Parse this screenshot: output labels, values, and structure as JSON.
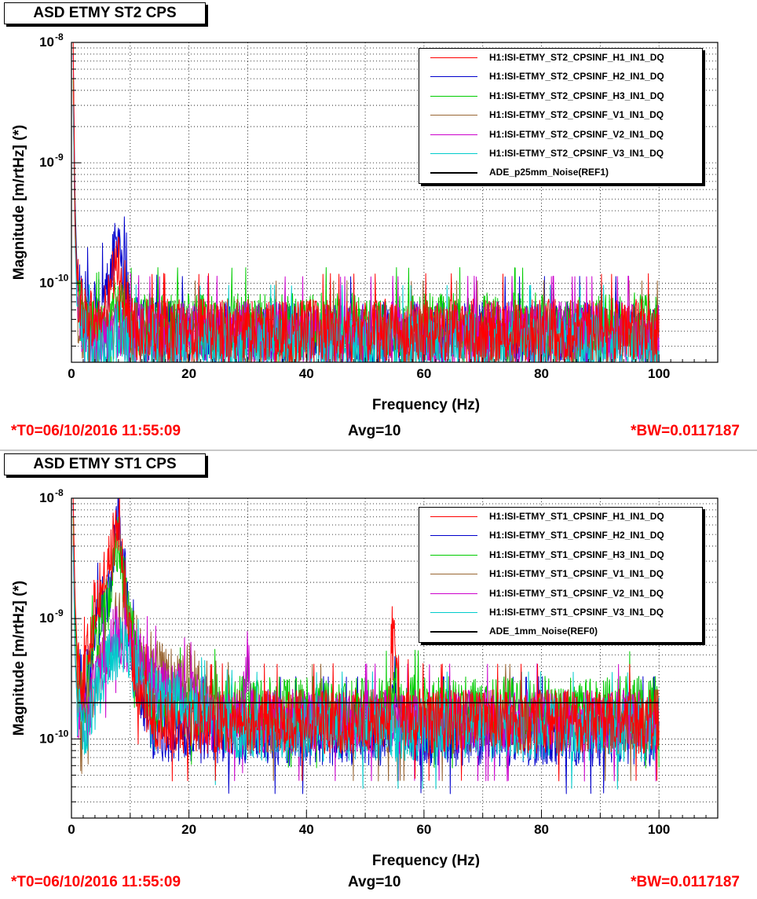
{
  "chart_data": [
    {
      "type": "line",
      "title": "ASD ETMY ST2 CPS",
      "xlabel": "Frequency (Hz)",
      "ylabel": "Magnitude [m/rtHz] (*)",
      "xlim": [
        0,
        110
      ],
      "ylim": [
        2.2e-11,
        1e-08
      ],
      "y_scale": "log",
      "grid": true,
      "legend_position": "top-right",
      "x_ticks": [
        "0",
        "20",
        "40",
        "60",
        "80",
        "100"
      ],
      "y_ticks": [
        {
          "base": "10",
          "exp": "-8"
        },
        {
          "base": "10",
          "exp": "-9"
        },
        {
          "base": "10",
          "exp": "-10"
        }
      ],
      "series": [
        {
          "name": "H1:ISI-ETMY_ST2_CPSINF_H1_IN1_DQ",
          "color": "#ff0000",
          "x": [
            0.3,
            0.6,
            1,
            2,
            4,
            6,
            7,
            8,
            9,
            10,
            12,
            20,
            40,
            60,
            80,
            100
          ],
          "y": [
            1e-08,
            3e-10,
            9e-11,
            6e-11,
            4.5e-11,
            6e-11,
            1e-10,
            1.45e-10,
            9e-11,
            4.5e-11,
            4e-11,
            4e-11,
            4e-11,
            4e-11,
            4e-11,
            4e-11
          ]
        },
        {
          "name": "H1:ISI-ETMY_ST2_CPSINF_H2_IN1_DQ",
          "color": "#0000cc",
          "x": [
            0.3,
            0.6,
            1,
            2,
            4,
            6,
            7,
            8,
            9,
            10,
            12,
            20,
            40,
            60,
            80,
            100
          ],
          "y": [
            8e-09,
            5e-10,
            1.1e-10,
            7e-11,
            6e-11,
            8e-11,
            1.6e-10,
            2.7e-10,
            1.2e-10,
            5e-11,
            4e-11,
            3.8e-11,
            3.8e-11,
            3.8e-11,
            3.8e-11,
            3.8e-11
          ]
        },
        {
          "name": "H1:ISI-ETMY_ST2_CPSINF_H3_IN1_DQ",
          "color": "#00cc00",
          "x": [
            0.3,
            0.6,
            1,
            2,
            4,
            6,
            7,
            8,
            9,
            10,
            12,
            20,
            40,
            60,
            80,
            100
          ],
          "y": [
            5e-09,
            4e-10,
            8e-11,
            5e-11,
            4e-11,
            4.5e-11,
            6e-11,
            7e-11,
            5e-11,
            4.5e-11,
            4.5e-11,
            4.5e-11,
            4.5e-11,
            4.5e-11,
            4.5e-11,
            4.5e-11
          ]
        },
        {
          "name": "H1:ISI-ETMY_ST2_CPSINF_V1_IN1_DQ",
          "color": "#996633",
          "x": [
            0.3,
            0.6,
            1,
            2,
            4,
            6,
            7,
            8,
            9,
            10,
            12,
            20,
            40,
            60,
            80,
            100
          ],
          "y": [
            4e-09,
            3e-10,
            6e-11,
            4e-11,
            3.5e-11,
            3.5e-11,
            4e-11,
            4.5e-11,
            4e-11,
            3.8e-11,
            3.5e-11,
            3.5e-11,
            3.5e-11,
            3.5e-11,
            3.5e-11,
            3.5e-11
          ]
        },
        {
          "name": "H1:ISI-ETMY_ST2_CPSINF_V2_IN1_DQ",
          "color": "#cc00cc",
          "x": [
            0.3,
            0.6,
            1,
            2,
            4,
            6,
            7,
            8,
            9,
            10,
            12,
            20,
            40,
            60,
            80,
            100
          ],
          "y": [
            3e-09,
            3e-10,
            6e-11,
            4e-11,
            3.5e-11,
            3.8e-11,
            4.2e-11,
            4.5e-11,
            4.2e-11,
            4e-11,
            3.8e-11,
            3.8e-11,
            3.8e-11,
            3.8e-11,
            3.8e-11,
            3.8e-11
          ]
        },
        {
          "name": "H1:ISI-ETMY_ST2_CPSINF_V3_IN1_DQ",
          "color": "#00cccc",
          "x": [
            0.3,
            0.6,
            1,
            2,
            4,
            6,
            7,
            8,
            9,
            10,
            12,
            20,
            40,
            60,
            80,
            100
          ],
          "y": [
            3e-09,
            2.5e-10,
            5e-11,
            3.5e-11,
            3e-11,
            3.2e-11,
            3.5e-11,
            4e-11,
            3.5e-11,
            3.3e-11,
            3.2e-11,
            3.2e-11,
            3.2e-11,
            3.2e-11,
            3.2e-11,
            3.2e-11
          ]
        },
        {
          "name": "ADE_p25mm_Noise(REF1)",
          "color": "#000000",
          "x": [],
          "y": []
        }
      ]
    },
    {
      "type": "line",
      "title": "ASD ETMY ST1 CPS",
      "xlabel": "Frequency (Hz)",
      "ylabel": "Magnitude [m/rtHz] (*)",
      "xlim": [
        0,
        110
      ],
      "ylim": [
        2.2e-11,
        1e-08
      ],
      "y_scale": "log",
      "grid": true,
      "legend_position": "top-right",
      "x_ticks": [
        "0",
        "20",
        "40",
        "60",
        "80",
        "100"
      ],
      "y_ticks": [
        {
          "base": "10",
          "exp": "-8"
        },
        {
          "base": "10",
          "exp": "-9"
        },
        {
          "base": "10",
          "exp": "-10"
        }
      ],
      "series": [
        {
          "name": "H1:ISI-ETMY_ST1_CPSINF_H1_IN1_DQ",
          "color": "#ff0000",
          "x": [
            0.3,
            0.6,
            1,
            2,
            3,
            4,
            5,
            6,
            7,
            8,
            9,
            10,
            11,
            12,
            14,
            20,
            40,
            54,
            55,
            56,
            60,
            80,
            100
          ],
          "y": [
            1e-08,
            1.5e-09,
            5e-10,
            3e-10,
            6e-10,
            1.3e-09,
            1.8e-09,
            2.5e-09,
            4e-09,
            6e-09,
            2e-09,
            6e-10,
            3e-10,
            2.5e-10,
            1.4e-10,
            1.4e-10,
            1.4e-10,
            1.4e-10,
            9e-10,
            1.6e-10,
            1.4e-10,
            1.4e-10,
            1.4e-10
          ]
        },
        {
          "name": "H1:ISI-ETMY_ST1_CPSINF_H2_IN1_DQ",
          "color": "#0000cc",
          "x": [
            0.3,
            0.6,
            1,
            2,
            3,
            4,
            5,
            6,
            7,
            8,
            9,
            10,
            11,
            12,
            14,
            20,
            40,
            54,
            55,
            56,
            60,
            80,
            100
          ],
          "y": [
            9e-09,
            1.2e-09,
            4e-10,
            2.5e-10,
            4e-10,
            8e-10,
            1.2e-09,
            1.5e-09,
            2.5e-09,
            8e-09,
            2.5e-09,
            7e-10,
            3.5e-10,
            2.5e-10,
            1.2e-10,
            1.1e-10,
            1.1e-10,
            1.1e-10,
            3e-10,
            1.2e-10,
            1.1e-10,
            1.1e-10,
            1.1e-10
          ]
        },
        {
          "name": "H1:ISI-ETMY_ST1_CPSINF_H3_IN1_DQ",
          "color": "#00cc00",
          "x": [
            0.3,
            0.6,
            1,
            2,
            3,
            4,
            5,
            6,
            7,
            8,
            9,
            10,
            11,
            12,
            14,
            20,
            40,
            54,
            55,
            56,
            60,
            80,
            100
          ],
          "y": [
            7e-09,
            1e-09,
            3.5e-10,
            2e-10,
            3.5e-10,
            7e-10,
            1e-09,
            1.3e-09,
            2e-09,
            4e-09,
            2e-09,
            8e-10,
            5e-10,
            4e-10,
            2e-10,
            1.9e-10,
            1.8e-10,
            1.8e-10,
            3e-10,
            1.9e-10,
            1.8e-10,
            1.8e-10,
            1.8e-10
          ]
        },
        {
          "name": "H1:ISI-ETMY_ST1_CPSINF_V1_IN1_DQ",
          "color": "#996633",
          "x": [
            0.3,
            0.6,
            1,
            2,
            3,
            4,
            5,
            6,
            7,
            8,
            9,
            10,
            12,
            14,
            16,
            18,
            20,
            22,
            23,
            24,
            30,
            40,
            60,
            80,
            100
          ],
          "y": [
            5e-09,
            6e-10,
            2e-10,
            1.5e-10,
            2e-10,
            3e-10,
            4e-10,
            6e-10,
            8e-10,
            1e-09,
            9e-10,
            7e-10,
            5e-10,
            4e-10,
            3.5e-10,
            3e-10,
            3.5e-10,
            2.5e-10,
            2.5e-10,
            1.5e-10,
            1.4e-10,
            1.4e-10,
            1.4e-10,
            1.4e-10,
            1.4e-10
          ]
        },
        {
          "name": "H1:ISI-ETMY_ST1_CPSINF_V2_IN1_DQ",
          "color": "#cc00cc",
          "x": [
            0.3,
            0.6,
            1,
            2,
            3,
            4,
            5,
            6,
            7,
            8,
            9,
            10,
            12,
            14,
            16,
            18,
            20,
            22,
            24,
            29,
            30,
            31,
            40,
            60,
            80,
            100
          ],
          "y": [
            4e-09,
            5e-10,
            1.8e-10,
            1.3e-10,
            1.8e-10,
            2.5e-10,
            3.5e-10,
            5e-10,
            7e-10,
            8e-10,
            7e-10,
            6e-10,
            4e-10,
            3e-10,
            2.5e-10,
            2.5e-10,
            2.2e-10,
            1.8e-10,
            1.4e-10,
            1.4e-10,
            5e-10,
            1.4e-10,
            1.4e-10,
            1.4e-10,
            1.4e-10,
            1.4e-10
          ]
        },
        {
          "name": "H1:ISI-ETMY_ST1_CPSINF_V3_IN1_DQ",
          "color": "#00cccc",
          "x": [
            0.3,
            0.6,
            1,
            2,
            3,
            4,
            5,
            6,
            7,
            8,
            9,
            10,
            12,
            14,
            16,
            18,
            20,
            22,
            24,
            30,
            40,
            60,
            80,
            100
          ],
          "y": [
            4e-09,
            5e-10,
            1.8e-10,
            1.2e-10,
            1.6e-10,
            2.2e-10,
            3e-10,
            4e-10,
            5e-10,
            6e-10,
            5e-10,
            4e-10,
            3e-10,
            2.5e-10,
            2.2e-10,
            2e-10,
            1.8e-10,
            1.6e-10,
            1.3e-10,
            1.2e-10,
            1.2e-10,
            1.2e-10,
            1.2e-10,
            1.2e-10
          ]
        },
        {
          "name": "ADE_1mm_Noise(REF0)",
          "color": "#000000",
          "x": [
            1,
            100
          ],
          "y": [
            2e-10,
            2e-10
          ]
        }
      ]
    }
  ],
  "footer": {
    "t0": "*T0=06/10/2016 11:55:09",
    "avg": "Avg=10",
    "bw": "*BW=0.0117187"
  }
}
